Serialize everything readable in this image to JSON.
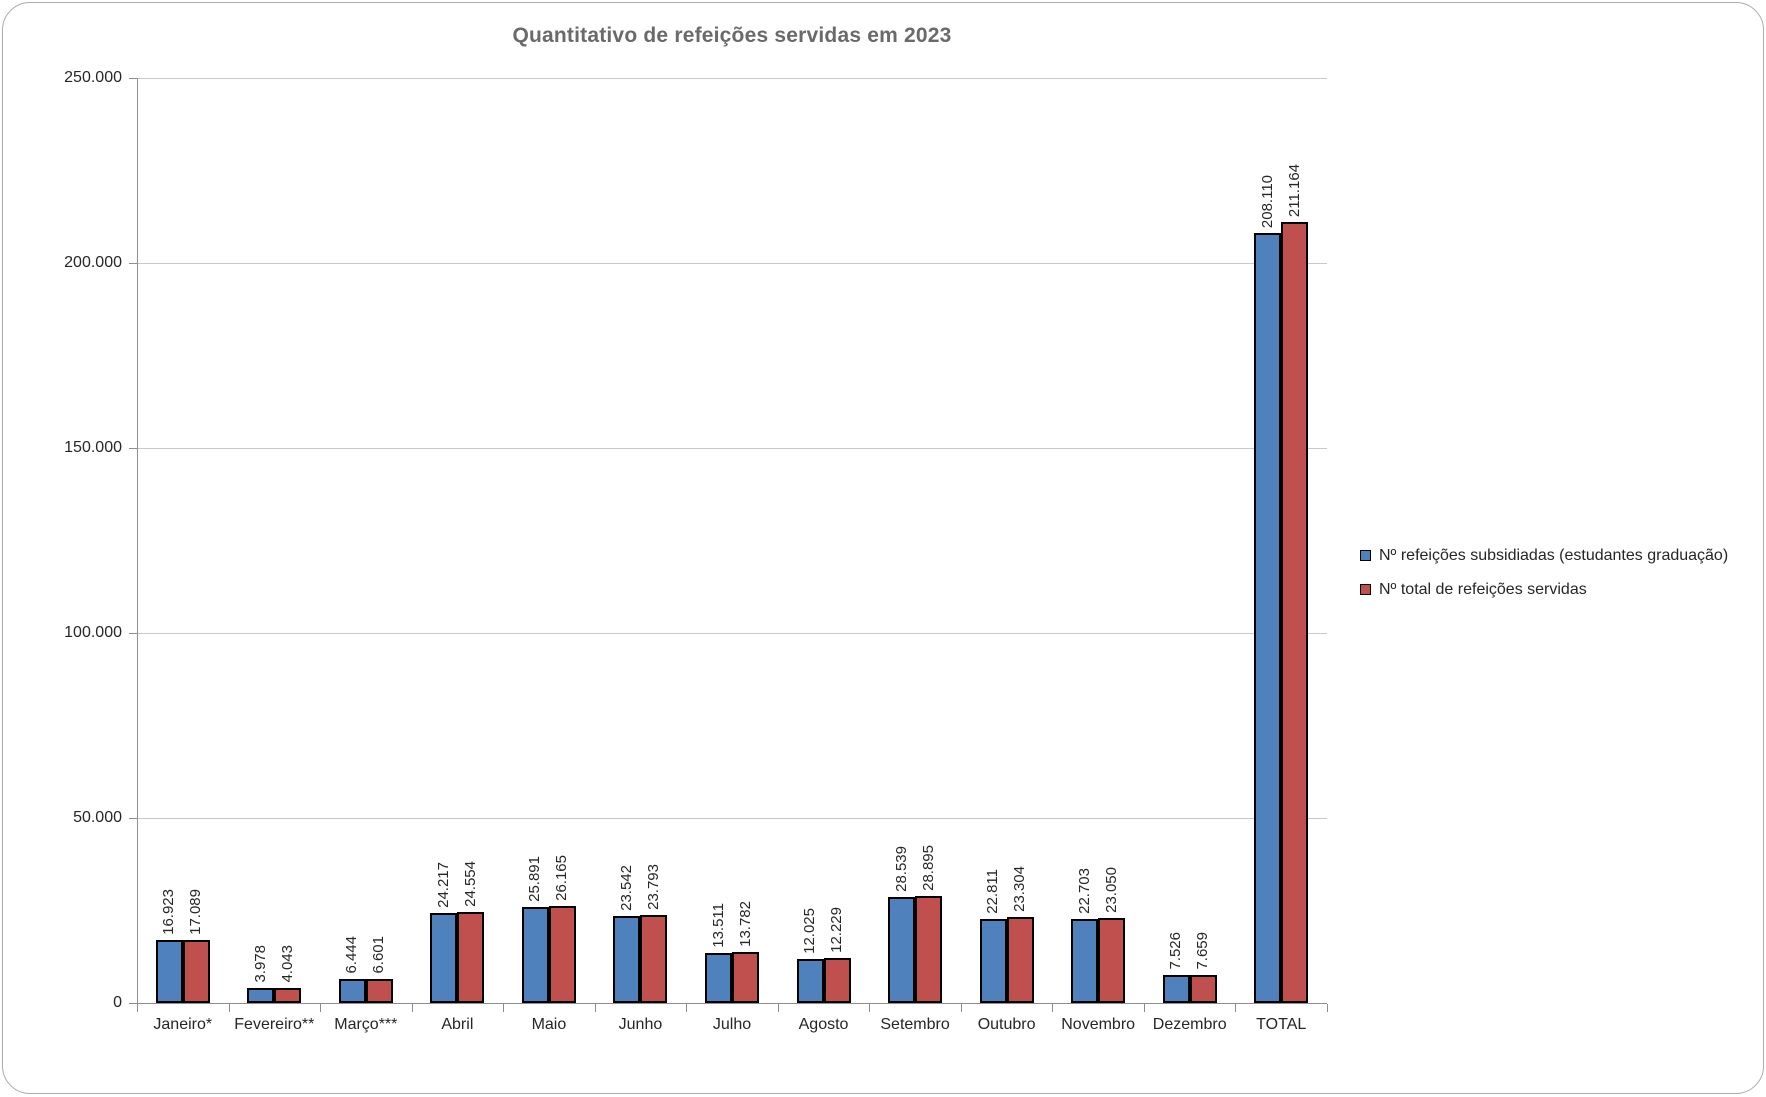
{
  "chart_data": {
    "type": "bar",
    "title": "Quantitativo de refeições servidas em 2023",
    "categories": [
      "Janeiro*",
      "Fevereiro**",
      "Março***",
      "Abril",
      "Maio",
      "Junho",
      "Julho",
      "Agosto",
      "Setembro",
      "Outubro",
      "Novembro",
      "Dezembro",
      "TOTAL"
    ],
    "series": [
      {
        "name": "Nº refeições subsidiadas (estudantes graduação)",
        "color": "#4f81bd",
        "values": [
          16923,
          3978,
          6444,
          24217,
          25891,
          23542,
          13511,
          12025,
          28539,
          22811,
          22703,
          7526,
          208110
        ],
        "value_labels": [
          "16.923",
          "3.978",
          "6.444",
          "24.217",
          "25.891",
          "23.542",
          "13.511",
          "12.025",
          "28.539",
          "22.811",
          "22.703",
          "7.526",
          "208.110"
        ]
      },
      {
        "name": "Nº total de refeições servidas",
        "color": "#c0504d",
        "values": [
          17089,
          4043,
          6601,
          24554,
          26165,
          23793,
          13782,
          12229,
          28895,
          23304,
          23050,
          7659,
          211164
        ],
        "value_labels": [
          "17.089",
          "4.043",
          "6.601",
          "24.554",
          "26.165",
          "23.793",
          "13.782",
          "12.229",
          "28.895",
          "23.304",
          "23.050",
          "7.659",
          "211.164"
        ]
      }
    ],
    "ylim": [
      0,
      250000
    ],
    "ytick_interval": 50000,
    "ytick_labels": [
      "0",
      "50.000",
      "100.000",
      "150.000",
      "200.000",
      "250.000"
    ],
    "grid": true,
    "legend_position": "right",
    "data_label_rotation": 90,
    "bar_border_color": "#000000"
  },
  "legend": {
    "items": [
      {
        "label": "Nº refeições subsidiadas (estudantes graduação)",
        "color": "#4f81bd"
      },
      {
        "label": "Nº total de refeições servidas",
        "color": "#c0504d"
      }
    ]
  },
  "colors": {
    "series_blue": "#4f81bd",
    "series_red": "#c0504d",
    "title_text": "#6a6a6a",
    "gridline": "#c9c9c9",
    "axis_line": "#8e8e8e",
    "frame_border": "#ababab",
    "label_text": "#262626"
  }
}
